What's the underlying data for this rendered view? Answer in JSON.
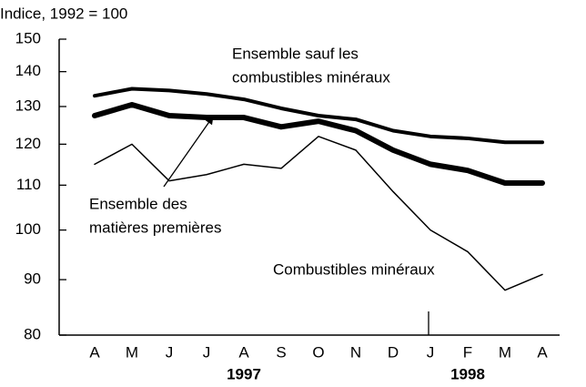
{
  "chart_data": {
    "type": "line",
    "y_axis_label": "Indice, 1992 = 100",
    "categories": [
      "A",
      "M",
      "J",
      "J",
      "A",
      "S",
      "O",
      "N",
      "D",
      "J",
      "F",
      "M",
      "A"
    ],
    "year_labels": [
      "1997",
      "1998"
    ],
    "log_scale": true,
    "ylim": [
      80,
      150
    ],
    "yticks": [
      80,
      90,
      100,
      110,
      120,
      130,
      140,
      150
    ],
    "series": [
      {
        "label": [
          "Ensemble sauf les",
          "combustibles minéraux"
        ],
        "color": "#000000",
        "values": [
          133,
          135,
          134.5,
          133.5,
          132,
          129.5,
          127.5,
          126.5,
          123.5,
          122,
          121.5,
          120.5,
          120.5
        ]
      },
      {
        "label": [
          "Ensemble des",
          "matières premières"
        ],
        "color": "#000000",
        "values": [
          127.5,
          130.5,
          127.5,
          127,
          127,
          124.5,
          126,
          123.5,
          118.5,
          115,
          113.5,
          110.5,
          110.5
        ]
      },
      {
        "label": [
          "Combustibles minéraux"
        ],
        "color": "#000000",
        "values": [
          115,
          120,
          111,
          112.5,
          115,
          114,
          122,
          118.5,
          108.5,
          100,
          95.5,
          88,
          91
        ]
      }
    ]
  }
}
